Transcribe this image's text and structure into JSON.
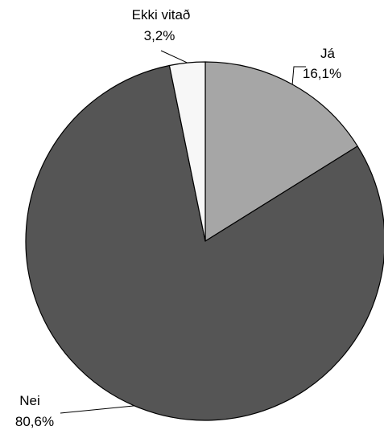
{
  "chart_data": {
    "type": "pie",
    "title": "",
    "start_angle_deg": 0,
    "direction": "clockwise",
    "slices": [
      {
        "label": "Já",
        "value": 16.1,
        "value_label": "16,1%",
        "color": "#a6a6a6"
      },
      {
        "label": "Nei",
        "value": 80.6,
        "value_label": "80,6%",
        "color": "#555555"
      },
      {
        "label": "Ekki vitað",
        "value": 3.2,
        "value_label": "3,2%",
        "color": "#f7f7f7"
      }
    ],
    "legend": "none",
    "slice_border_color": "#000000"
  }
}
